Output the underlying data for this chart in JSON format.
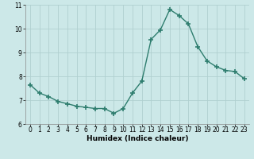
{
  "x": [
    0,
    1,
    2,
    3,
    4,
    5,
    6,
    7,
    8,
    9,
    10,
    11,
    12,
    13,
    14,
    15,
    16,
    17,
    18,
    19,
    20,
    21,
    22,
    23
  ],
  "y": [
    7.65,
    7.3,
    7.15,
    6.95,
    6.85,
    6.75,
    6.7,
    6.65,
    6.65,
    6.45,
    6.65,
    7.3,
    7.8,
    9.55,
    9.95,
    10.8,
    10.55,
    10.2,
    9.25,
    8.65,
    8.4,
    8.25,
    8.2,
    7.9
  ],
  "line_color": "#2e7d6e",
  "marker": "+",
  "marker_size": 4,
  "marker_lw": 1.2,
  "line_width": 1.0,
  "bg_color": "#cce8e8",
  "grid_color": "#b0d0d0",
  "xlabel": "Humidex (Indice chaleur)",
  "ylim": [
    6,
    11
  ],
  "xlim": [
    -0.5,
    23.5
  ],
  "yticks": [
    6,
    7,
    8,
    9,
    10,
    11
  ],
  "xticks": [
    0,
    1,
    2,
    3,
    4,
    5,
    6,
    7,
    8,
    9,
    10,
    11,
    12,
    13,
    14,
    15,
    16,
    17,
    18,
    19,
    20,
    21,
    22,
    23
  ],
  "label_fontsize": 6.5,
  "tick_fontsize": 5.5,
  "spine_color": "#888888"
}
